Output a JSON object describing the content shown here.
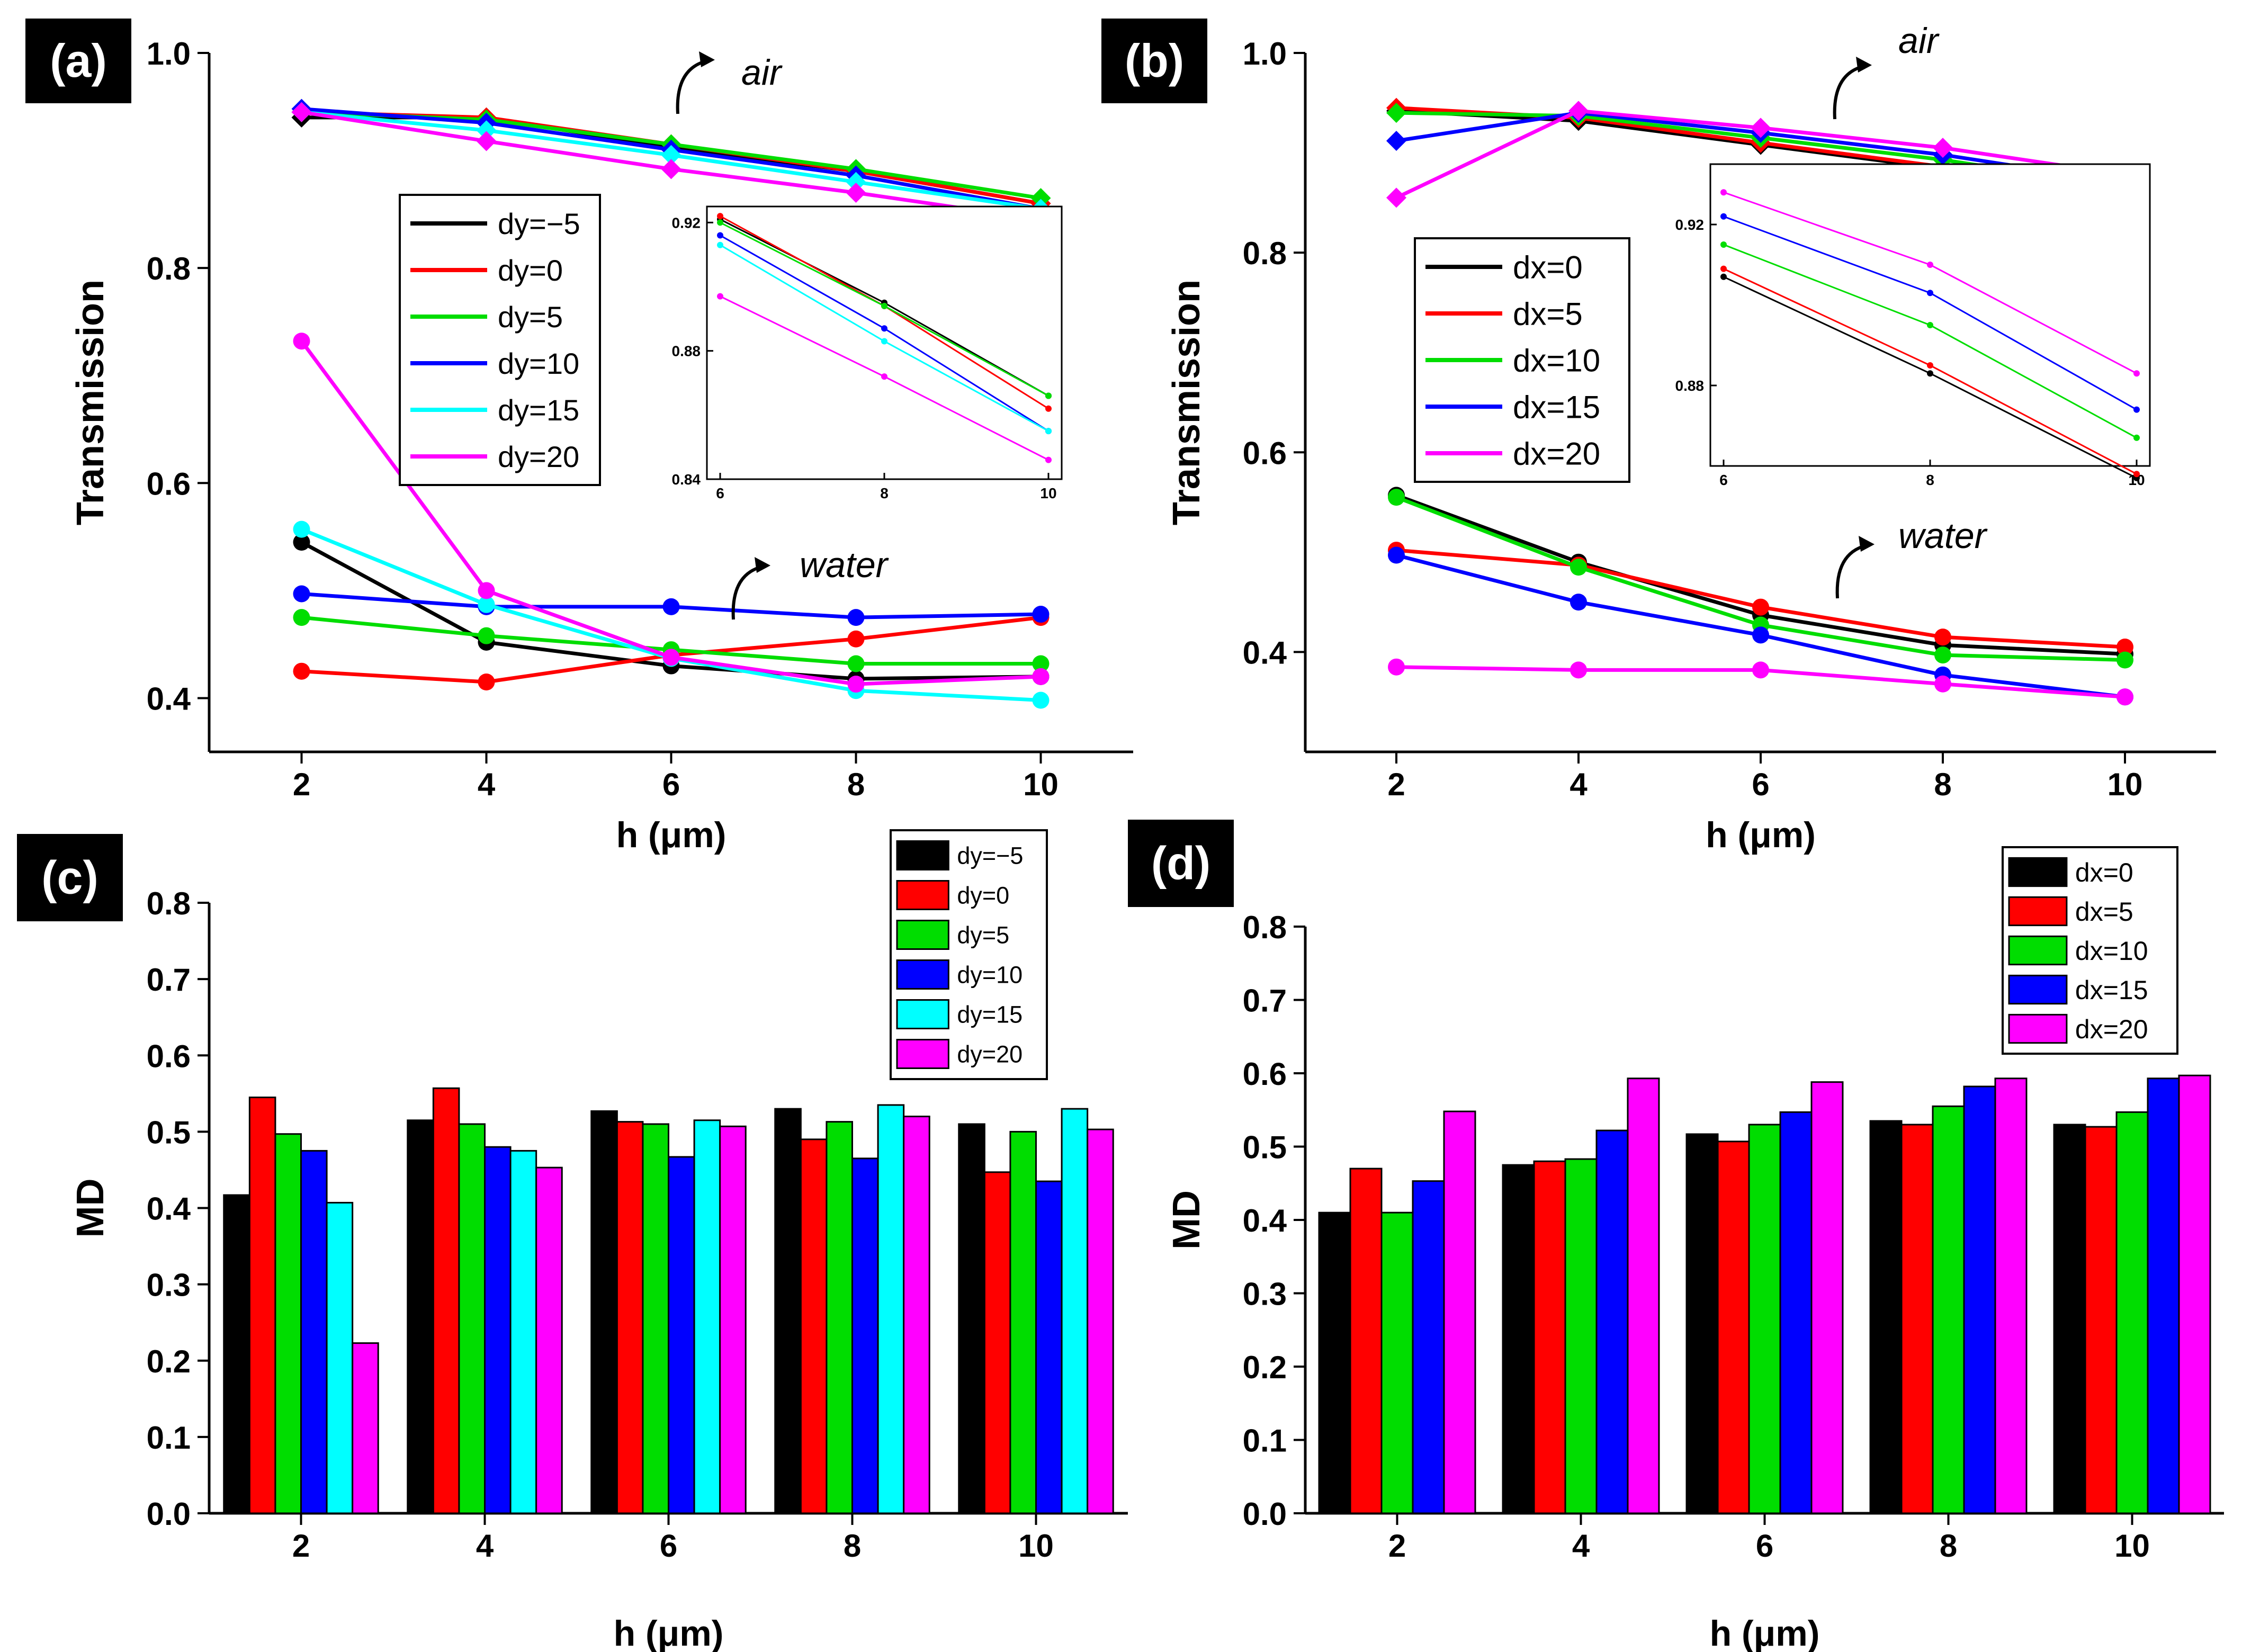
{
  "colors": {
    "series6": [
      "#000000",
      "#ff0000",
      "#00dd00",
      "#0000ff",
      "#00ffff",
      "#ff00ff"
    ],
    "series5": [
      "#000000",
      "#ff0000",
      "#00dd00",
      "#0000ff",
      "#ff00ff"
    ],
    "axis": "#000000",
    "panel_label_bg": "#000000",
    "panel_label_fg": "#ffffff"
  },
  "chart_data": [
    {
      "id": "a",
      "type": "line",
      "panel_label": "(a)",
      "xlabel": "h (μm)",
      "ylabel": "Transmission",
      "x": [
        2,
        4,
        6,
        8,
        10
      ],
      "xticks": [
        "2",
        "4",
        "6",
        "8",
        "10"
      ],
      "ylim": [
        0.35,
        1.0
      ],
      "yticks": [
        0.4,
        0.6,
        0.8,
        1.0
      ],
      "ytick_labels": [
        "0.4",
        "0.6",
        "0.8",
        "1.0"
      ],
      "legend_position": "center-left",
      "annotations": [
        "air",
        "water"
      ],
      "groups": [
        {
          "name": "air",
          "series": [
            {
              "name": "dy=−5",
              "values": [
                0.94,
                0.94,
                0.912,
                0.89,
                0.86
              ]
            },
            {
              "name": "dy=0",
              "values": [
                0.945,
                0.94,
                0.915,
                0.89,
                0.86
              ]
            },
            {
              "name": "dy=5",
              "values": [
                0.945,
                0.938,
                0.915,
                0.892,
                0.865
              ]
            },
            {
              "name": "dy=10",
              "values": [
                0.948,
                0.935,
                0.91,
                0.886,
                0.855
              ]
            },
            {
              "name": "dy=15",
              "values": [
                0.945,
                0.928,
                0.905,
                0.88,
                0.855
              ]
            },
            {
              "name": "dy=20",
              "values": [
                0.945,
                0.918,
                0.892,
                0.87,
                0.845
              ]
            }
          ]
        },
        {
          "name": "water",
          "series": [
            {
              "name": "dy=−5",
              "values": [
                0.545,
                0.452,
                0.43,
                0.418,
                0.42
              ]
            },
            {
              "name": "dy=0",
              "values": [
                0.425,
                0.415,
                0.44,
                0.455,
                0.475
              ]
            },
            {
              "name": "dy=5",
              "values": [
                0.475,
                0.458,
                0.445,
                0.432,
                0.432
              ]
            },
            {
              "name": "dy=10",
              "values": [
                0.497,
                0.485,
                0.485,
                0.475,
                0.478
              ]
            },
            {
              "name": "dy=15",
              "values": [
                0.557,
                0.487,
                0.437,
                0.407,
                0.398
              ]
            },
            {
              "name": "dy=20",
              "values": [
                0.732,
                0.5,
                0.438,
                0.413,
                0.42
              ]
            }
          ]
        }
      ],
      "inset": {
        "x": [
          6,
          8,
          10
        ],
        "xticks": [
          "6",
          "8",
          "10"
        ],
        "ylim": [
          0.84,
          0.925
        ],
        "yticks": [
          0.84,
          0.88,
          0.92
        ],
        "ytick_labels": [
          "0.84",
          "0.88",
          "0.92"
        ],
        "series": [
          {
            "name": "dy=−5",
            "values": [
              0.921,
              0.895,
              0.866
            ]
          },
          {
            "name": "dy=0",
            "values": [
              0.922,
              0.894,
              0.862
            ]
          },
          {
            "name": "dy=5",
            "values": [
              0.92,
              0.894,
              0.866
            ]
          },
          {
            "name": "dy=10",
            "values": [
              0.916,
              0.887,
              0.855
            ]
          },
          {
            "name": "dy=15",
            "values": [
              0.913,
              0.883,
              0.855
            ]
          },
          {
            "name": "dy=20",
            "values": [
              0.897,
              0.872,
              0.846
            ]
          }
        ]
      }
    },
    {
      "id": "b",
      "type": "line",
      "panel_label": "(b)",
      "xlabel": "h (μm)",
      "ylabel": "Transmission",
      "x": [
        2,
        4,
        6,
        8,
        10
      ],
      "xticks": [
        "2",
        "4",
        "6",
        "8",
        "10"
      ],
      "ylim": [
        0.3,
        1.0
      ],
      "yticks": [
        0.4,
        0.6,
        0.8,
        1.0
      ],
      "ytick_labels": [
        "0.4",
        "0.6",
        "0.8",
        "1.0"
      ],
      "legend_position": "center-left",
      "annotations": [
        "air",
        "water"
      ],
      "groups": [
        {
          "name": "air",
          "series": [
            {
              "name": "dx=0",
              "values": [
                0.942,
                0.932,
                0.908,
                0.884,
                0.855
              ]
            },
            {
              "name": "dx=5",
              "values": [
                0.945,
                0.935,
                0.91,
                0.886,
                0.857
              ]
            },
            {
              "name": "dx=10",
              "values": [
                0.94,
                0.937,
                0.915,
                0.893,
                0.865
              ]
            },
            {
              "name": "dx=15",
              "values": [
                0.912,
                0.94,
                0.92,
                0.898,
                0.87
              ]
            },
            {
              "name": "dx=20",
              "values": [
                0.855,
                0.942,
                0.925,
                0.905,
                0.878
              ]
            }
          ]
        },
        {
          "name": "water",
          "series": [
            {
              "name": "dx=0",
              "values": [
                0.557,
                0.49,
                0.437,
                0.407,
                0.398
              ]
            },
            {
              "name": "dx=5",
              "values": [
                0.502,
                0.487,
                0.445,
                0.415,
                0.405
              ]
            },
            {
              "name": "dx=10",
              "values": [
                0.555,
                0.485,
                0.427,
                0.397,
                0.392
              ]
            },
            {
              "name": "dx=15",
              "values": [
                0.497,
                0.45,
                0.417,
                0.377,
                0.355
              ]
            },
            {
              "name": "dx=20",
              "values": [
                0.385,
                0.382,
                0.382,
                0.368,
                0.355
              ]
            }
          ]
        }
      ],
      "inset": {
        "x": [
          6,
          8,
          10
        ],
        "xticks": [
          "6",
          "8",
          "10"
        ],
        "ylim": [
          0.86,
          0.935
        ],
        "yticks": [
          0.88,
          0.92
        ],
        "ytick_labels": [
          "0.88",
          "0.92"
        ],
        "series": [
          {
            "name": "dx=0",
            "values": [
              0.907,
              0.883,
              0.857
            ]
          },
          {
            "name": "dx=5",
            "values": [
              0.909,
              0.885,
              0.858
            ]
          },
          {
            "name": "dx=10",
            "values": [
              0.915,
              0.895,
              0.867
            ]
          },
          {
            "name": "dx=15",
            "values": [
              0.922,
              0.903,
              0.874
            ]
          },
          {
            "name": "dx=20",
            "values": [
              0.928,
              0.91,
              0.883
            ]
          }
        ]
      }
    },
    {
      "id": "c",
      "type": "bar",
      "panel_label": "(c)",
      "xlabel": "h (μm)",
      "ylabel": "MD",
      "categories": [
        "2",
        "4",
        "6",
        "8",
        "10"
      ],
      "ylim": [
        0.0,
        0.8
      ],
      "yticks": [
        0.0,
        0.1,
        0.2,
        0.3,
        0.4,
        0.5,
        0.6,
        0.7,
        0.8
      ],
      "ytick_labels": [
        "0.0",
        "0.1",
        "0.2",
        "0.3",
        "0.4",
        "0.5",
        "0.6",
        "0.7",
        "0.8"
      ],
      "legend_position": "top-right",
      "series": [
        {
          "name": "dy=−5",
          "values": [
            0.417,
            0.515,
            0.527,
            0.53,
            0.51
          ]
        },
        {
          "name": "dy=0",
          "values": [
            0.545,
            0.557,
            0.513,
            0.49,
            0.447
          ]
        },
        {
          "name": "dy=5",
          "values": [
            0.497,
            0.51,
            0.51,
            0.513,
            0.5
          ]
        },
        {
          "name": "dy=10",
          "values": [
            0.475,
            0.48,
            0.467,
            0.465,
            0.435
          ]
        },
        {
          "name": "dy=15",
          "values": [
            0.407,
            0.475,
            0.515,
            0.535,
            0.53
          ]
        },
        {
          "name": "dy=20",
          "values": [
            0.223,
            0.453,
            0.507,
            0.52,
            0.503
          ]
        }
      ]
    },
    {
      "id": "d",
      "type": "bar",
      "panel_label": "(d)",
      "xlabel": "h (μm)",
      "ylabel": "MD",
      "categories": [
        "2",
        "4",
        "6",
        "8",
        "10"
      ],
      "ylim": [
        0.0,
        0.8
      ],
      "yticks": [
        0.0,
        0.1,
        0.2,
        0.3,
        0.4,
        0.5,
        0.6,
        0.7,
        0.8
      ],
      "ytick_labels": [
        "0.0",
        "0.1",
        "0.2",
        "0.3",
        "0.4",
        "0.5",
        "0.6",
        "0.7",
        "0.8"
      ],
      "legend_position": "top-right",
      "series": [
        {
          "name": "dx=0",
          "values": [
            0.41,
            0.475,
            0.517,
            0.535,
            0.53
          ]
        },
        {
          "name": "dx=5",
          "values": [
            0.47,
            0.48,
            0.507,
            0.53,
            0.527
          ]
        },
        {
          "name": "dx=10",
          "values": [
            0.41,
            0.483,
            0.53,
            0.555,
            0.547
          ]
        },
        {
          "name": "dx=15",
          "values": [
            0.453,
            0.522,
            0.547,
            0.582,
            0.593
          ]
        },
        {
          "name": "dx=20",
          "values": [
            0.548,
            0.593,
            0.588,
            0.593,
            0.597
          ]
        }
      ]
    }
  ]
}
